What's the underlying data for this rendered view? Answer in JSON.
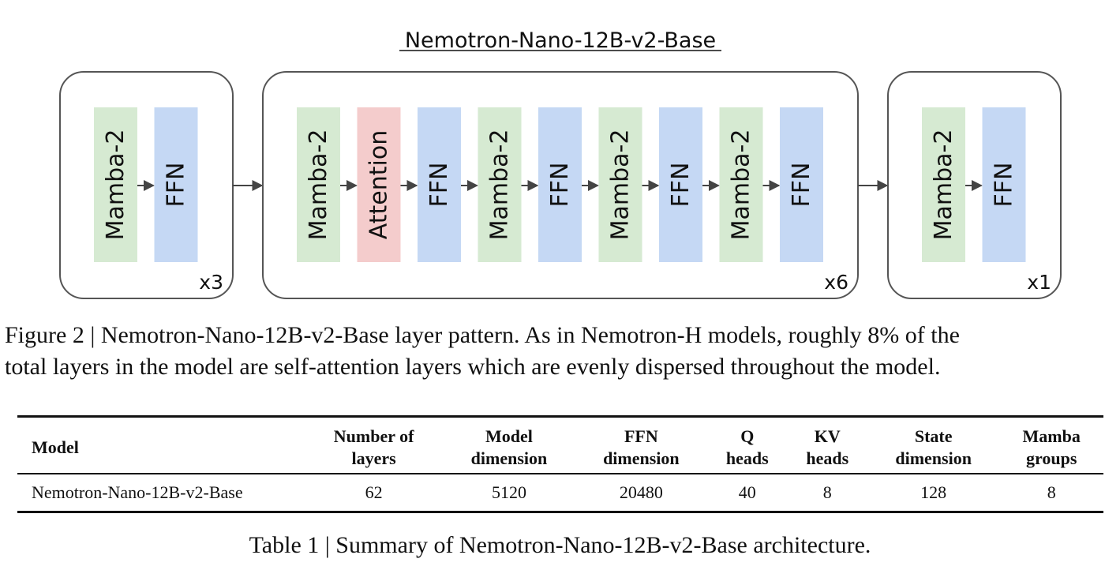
{
  "diagram": {
    "title": "Nemotron-Nano-12B-v2-Base",
    "colors": {
      "mamba": "#d6ead2",
      "ffn": "#c5d8f4",
      "attention": "#f4cccc",
      "border": "#555555",
      "arrow": "#444444"
    },
    "groups": [
      {
        "repeat": "x3",
        "blocks": [
          "Mamba-2",
          "FFN"
        ]
      },
      {
        "repeat": "x6",
        "blocks": [
          "Mamba-2",
          "Attention",
          "FFN",
          "Mamba-2",
          "FFN",
          "Mamba-2",
          "FFN",
          "Mamba-2",
          "FFN"
        ]
      },
      {
        "repeat": "x1",
        "blocks": [
          "Mamba-2",
          "FFN"
        ]
      }
    ]
  },
  "figure_caption": {
    "line1": "Figure 2 | Nemotron-Nano-12B-v2-Base layer pattern. As in Nemotron-H models, roughly 8% of the",
    "line2": "total layers in the model are self-attention layers which are evenly dispersed throughout the model."
  },
  "table": {
    "headers": [
      [
        "Model"
      ],
      [
        "Number of",
        "layers"
      ],
      [
        "Model",
        "dimension"
      ],
      [
        "FFN",
        "dimension"
      ],
      [
        "Q",
        "heads"
      ],
      [
        "KV",
        "heads"
      ],
      [
        "State",
        "dimension"
      ],
      [
        "Mamba",
        "groups"
      ]
    ],
    "rows": [
      [
        "Nemotron-Nano-12B-v2-Base",
        "62",
        "5120",
        "20480",
        "40",
        "8",
        "128",
        "8"
      ]
    ]
  },
  "table_caption": "Table 1 | Summary of Nemotron-Nano-12B-v2-Base architecture."
}
